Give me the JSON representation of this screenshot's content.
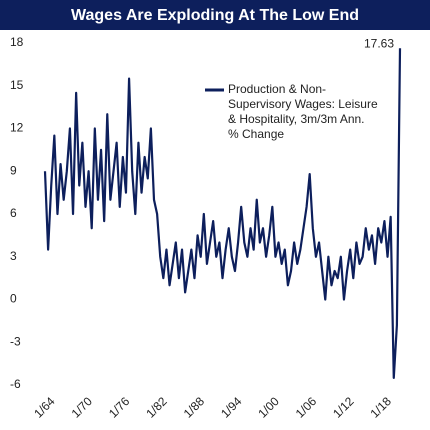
{
  "chart_data": {
    "type": "line",
    "title": "Wages Are Exploding At The Low End",
    "categories": [
      "1/64",
      null,
      null,
      null,
      null,
      null,
      null,
      null,
      null,
      null,
      null,
      null,
      "1/70",
      null,
      null,
      null,
      null,
      null,
      null,
      null,
      null,
      null,
      null,
      null,
      "1/76",
      null,
      null,
      null,
      null,
      null,
      null,
      null,
      null,
      null,
      null,
      null,
      "1/82",
      null,
      null,
      null,
      null,
      null,
      null,
      null,
      null,
      null,
      null,
      null,
      "1/88",
      null,
      null,
      null,
      null,
      null,
      null,
      null,
      null,
      null,
      null,
      null,
      "1/94",
      null,
      null,
      null,
      null,
      null,
      null,
      null,
      null,
      null,
      null,
      null,
      "1/00",
      null,
      null,
      null,
      null,
      null,
      null,
      null,
      null,
      null,
      null,
      null,
      "1/06",
      null,
      null,
      null,
      null,
      null,
      null,
      null,
      null,
      null,
      null,
      null,
      "1/12",
      null,
      null,
      null,
      null,
      null,
      null,
      null,
      null,
      null,
      null,
      null,
      "1/18",
      null,
      null,
      null,
      null,
      null,
      null
    ],
    "series": [
      {
        "name": "Production & Non-Supervisory Wages: Leisure & Hospitality, 3m/3m Ann. % Change",
        "color": "#0d1f5c",
        "values": [
          9,
          3.5,
          8,
          11.5,
          6,
          9.5,
          7,
          9,
          12,
          6,
          14.5,
          8,
          11,
          6.5,
          9,
          5,
          12,
          7,
          10.5,
          5.5,
          13,
          7,
          9,
          11,
          6.5,
          10,
          7.5,
          15.5,
          9,
          6,
          11,
          7.5,
          10,
          8.5,
          12,
          7,
          6,
          3,
          1.5,
          3.5,
          1,
          2.5,
          4,
          1.5,
          3.5,
          0.5,
          2,
          3.5,
          1.5,
          4.5,
          3,
          6,
          2.5,
          4,
          5.5,
          3,
          4,
          1.5,
          3.5,
          5,
          3,
          2,
          4,
          6.5,
          4,
          3,
          5,
          3.5,
          7,
          4,
          5,
          3,
          4.5,
          6.5,
          3,
          4,
          2.5,
          3.5,
          1,
          2,
          4,
          2.5,
          3.5,
          5,
          6.5,
          8.8,
          5,
          3,
          4,
          2,
          0,
          3,
          1,
          2,
          1.5,
          3,
          0,
          2,
          3.5,
          1.5,
          4,
          2.5,
          3,
          5,
          3.5,
          4.5,
          2.5,
          5,
          4,
          5.5,
          3,
          5.8,
          -5.5,
          -1.8,
          17.63
        ]
      }
    ],
    "ylim": [
      -6,
      18
    ],
    "yticks": [
      -6,
      -3,
      0,
      3,
      6,
      9,
      12,
      15,
      18
    ],
    "grid": false
  }
}
